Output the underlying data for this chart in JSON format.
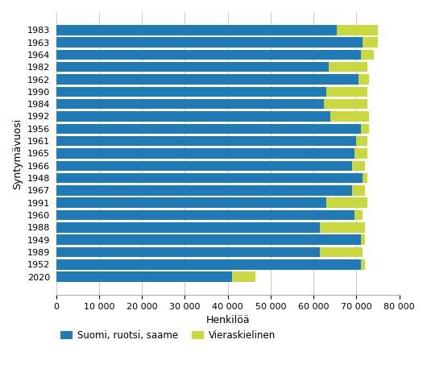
{
  "categories": [
    "1983",
    "1963",
    "1964",
    "1982",
    "1962",
    "1990",
    "1984",
    "1992",
    "1956",
    "1961",
    "1965",
    "1966",
    "1948",
    "1967",
    "1991",
    "1960",
    "1988",
    "1949",
    "1989",
    "1952",
    "2020"
  ],
  "finnish": [
    65500,
    71500,
    71000,
    63500,
    70500,
    63000,
    62500,
    64000,
    71000,
    70000,
    69500,
    69000,
    71500,
    69000,
    63000,
    69500,
    61500,
    71000,
    61500,
    71000,
    41000
  ],
  "foreign": [
    9500,
    3500,
    3000,
    9000,
    2500,
    9500,
    10000,
    9000,
    2000,
    2500,
    3000,
    3000,
    1000,
    3000,
    9500,
    2000,
    10500,
    1000,
    10000,
    1000,
    5500
  ],
  "color_finnish": "#1f7ab5",
  "color_foreign": "#c8d83e",
  "ylabel": "Syntymävuosi",
  "xlabel": "Henkilöä",
  "legend_finnish": "Suomi, ruotsi, saame",
  "legend_foreign": "Vieraskielinen",
  "xlim": [
    0,
    80000
  ],
  "xticks": [
    0,
    10000,
    20000,
    30000,
    40000,
    50000,
    60000,
    70000,
    80000
  ]
}
